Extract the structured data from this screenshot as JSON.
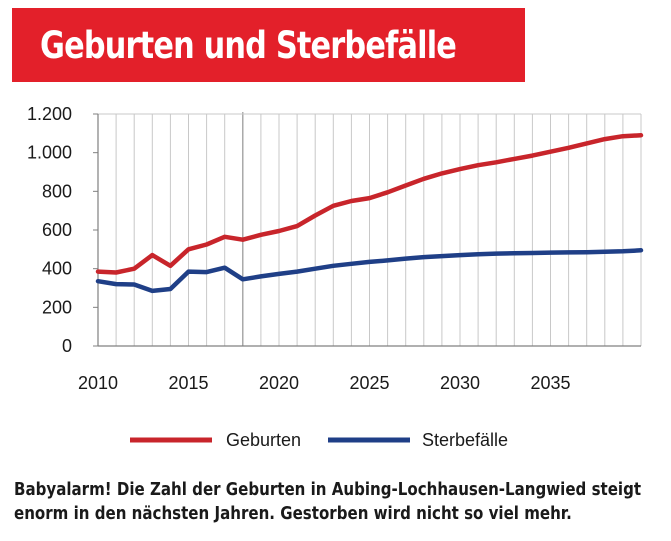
{
  "header": {
    "title": "Geburten und Sterbefälle"
  },
  "caption": {
    "line1": "Babyalarm! Die Zahl der Geburten in Aubing-Lochhausen-Langwied steigt",
    "line2": "enorm in den nächsten Jahren. Gestorben wird nicht so viel mehr."
  },
  "colors": {
    "title_bg": "#e3202a",
    "births": "#c8252b",
    "deaths": "#1f3f87",
    "grid": "#c8c8c8"
  },
  "chart_data": {
    "type": "line",
    "x": [
      2010,
      2011,
      2012,
      2013,
      2014,
      2015,
      2016,
      2017,
      2018,
      2019,
      2020,
      2021,
      2022,
      2023,
      2024,
      2025,
      2026,
      2027,
      2028,
      2029,
      2030,
      2031,
      2032,
      2033,
      2034,
      2035,
      2036,
      2037,
      2038,
      2039,
      2040
    ],
    "series": [
      {
        "name": "Geburten",
        "values": [
          385,
          380,
          400,
          470,
          415,
          500,
          525,
          565,
          550,
          575,
          595,
          620,
          675,
          725,
          750,
          765,
          795,
          830,
          865,
          893,
          915,
          935,
          950,
          968,
          985,
          1005,
          1025,
          1048,
          1070,
          1085,
          1090
        ]
      },
      {
        "name": "Sterbefälle",
        "values": [
          335,
          320,
          318,
          285,
          295,
          385,
          382,
          405,
          345,
          360,
          373,
          385,
          400,
          415,
          425,
          435,
          443,
          452,
          460,
          465,
          470,
          475,
          478,
          480,
          481,
          483,
          484,
          485,
          487,
          490,
          495
        ]
      }
    ],
    "xlim": [
      2010,
      2040
    ],
    "ylim": [
      0,
      1200
    ],
    "yticks": [
      0,
      200,
      400,
      600,
      800,
      1000,
      1200
    ],
    "ytick_labels": [
      "0",
      "200",
      "400",
      "600",
      "800",
      "1.000",
      "1.200"
    ],
    "xtick_labels": [
      "2010",
      "2015",
      "2020",
      "2025",
      "2030",
      "2035"
    ],
    "xlabel": "",
    "ylabel": "",
    "grid": "vertical lines at every year, reference line at 2018",
    "legend": "bottom"
  }
}
